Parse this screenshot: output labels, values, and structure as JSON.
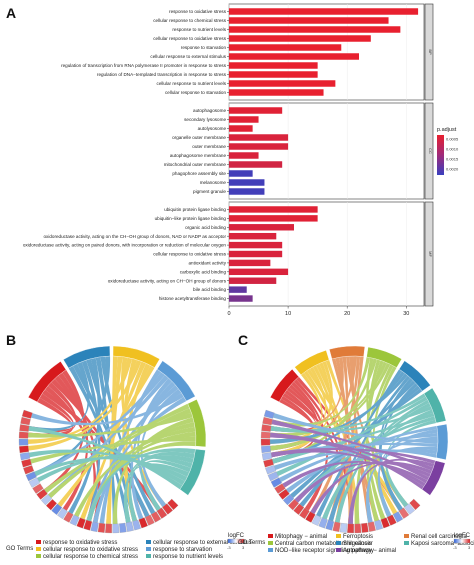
{
  "chart_data": [
    {
      "type": "bar",
      "panel": "A",
      "orientation": "horizontal",
      "xlim": [
        0,
        33
      ],
      "xticks": [
        "0",
        "10",
        "20",
        "30"
      ],
      "legend": {
        "title": "p.adjust",
        "ticks": [
          "0.0005",
          "0.0010",
          "0.0015",
          "0.0020"
        ],
        "placement": "right"
      },
      "colors": {
        "low": "#e8202f",
        "high": "#3a3fbf"
      },
      "facets": [
        {
          "strip": "BP",
          "categories": [
            "response to oxidative stress",
            "cellular response to chemical stress",
            "response to nutrient levels",
            "cellular response to oxidative stress",
            "response to starvation",
            "cellular response to external stimulus",
            "regulation of transcription from RNA polymerase II promoter in response to stress",
            "regulation of DNA−templated transcription in response to stress",
            "cellular response to nutrient levels",
            "cellular response to starvation"
          ],
          "values": [
            32,
            27,
            29,
            24,
            19,
            22,
            15,
            15,
            18,
            16
          ],
          "p_adjust": [
            0.0001,
            0.0001,
            0.0001,
            0.0001,
            0.0001,
            0.0001,
            0.0001,
            0.0001,
            0.0001,
            0.0001
          ]
        },
        {
          "strip": "CC",
          "categories": [
            "autophagosome",
            "secondary lysosome",
            "autolysosome",
            "organelle outer membrane",
            "outer membrane",
            "autophagosome membrane",
            "mitochondrial outer membrane",
            "phagophore assembly site",
            "melanosome",
            "pigment granule"
          ],
          "values": [
            9,
            5,
            4,
            10,
            10,
            5,
            9,
            4,
            6,
            6
          ],
          "p_adjust": [
            0.0002,
            0.0002,
            0.0002,
            0.0003,
            0.0003,
            0.0003,
            0.0004,
            0.0023,
            0.0023,
            0.0023
          ]
        },
        {
          "strip": "MF",
          "categories": [
            "ubiquitin protein ligase binding",
            "ubiquitin−like protein ligase binding",
            "organic acid binding",
            "oxidoreductase activity, acting on the CH−OH group of donors, NAD or NADP as acceptor",
            "oxidoreductase activity, acting on paired donors, with incorporation or reduction of molecular oxygen",
            "cellular response to oxidative stress",
            "antioxidant activity",
            "carboxylic acid binding",
            "oxidoreductase activity, acting on CH−OH group of donors",
            "bile acid binding",
            "histone acetyltransferase binding"
          ],
          "values": [
            15,
            15,
            11,
            8,
            9,
            9,
            7,
            10,
            8,
            3,
            4
          ],
          "p_adjust": [
            0.0002,
            0.0002,
            0.0003,
            0.0003,
            0.0003,
            0.0003,
            0.0003,
            0.0003,
            0.0004,
            0.0019,
            0.0016
          ]
        }
      ]
    },
    {
      "type": "chord",
      "panel": "B",
      "legend_title": "GO Terms",
      "terms": [
        {
          "name": "response to oxidative stress",
          "color": "#d7191c"
        },
        {
          "name": "cellular response to external stimulus",
          "color": "#2b83ba"
        },
        {
          "name": "cellular response to oxidative stress",
          "color": "#f0c020"
        },
        {
          "name": "response to starvation",
          "color": "#5b9bd5"
        },
        {
          "name": "cellular response to chemical stress",
          "color": "#9cc63b"
        },
        {
          "name": "response to nutrient levels",
          "color": "#4fb3a9"
        }
      ],
      "logfc_label": "logFC",
      "logfc_ticks": [
        "-3",
        "3"
      ]
    },
    {
      "type": "chord",
      "panel": "C",
      "legend_title": "GO Terms",
      "terms": [
        {
          "name": "Mitophagy − animal",
          "color": "#d7191c"
        },
        {
          "name": "Ferroptosis",
          "color": "#f0c020"
        },
        {
          "name": "Renal cell carcinoma",
          "color": "#e07b39"
        },
        {
          "name": "Central carbon metabolism in cancer",
          "color": "#9cc63b"
        },
        {
          "name": "Shigellosis",
          "color": "#2b83ba"
        },
        {
          "name": "Kaposi sarcoma−associated herpesvirus infection",
          "color": "#4fb3a9"
        },
        {
          "name": "NOD−like receptor signaling pathway",
          "color": "#5b9bd5"
        },
        {
          "name": "Autophagy − animal",
          "color": "#7b3fa0"
        }
      ],
      "logfc_label": "logFC",
      "logfc_ticks": [
        "-3",
        "3"
      ]
    }
  ],
  "panels": {
    "a": "A",
    "b": "B",
    "c": "C"
  }
}
